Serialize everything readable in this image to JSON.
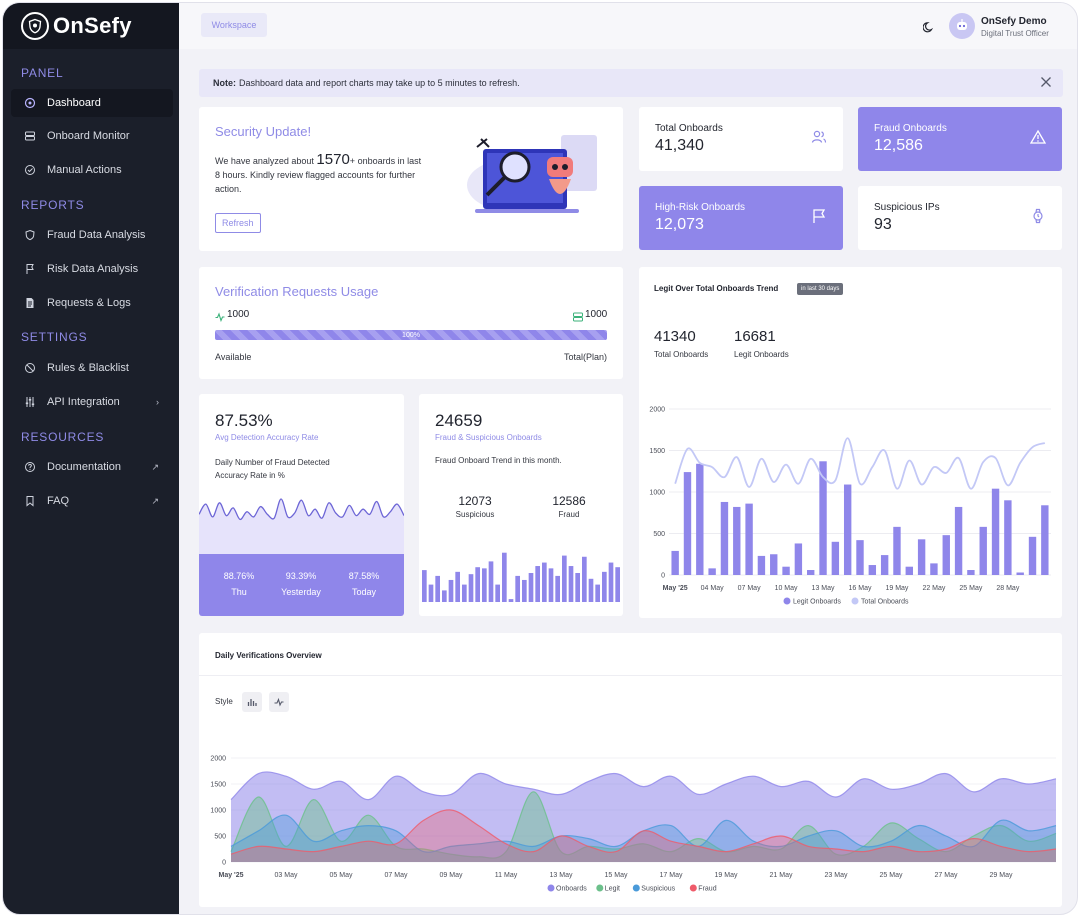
{
  "brand": {
    "name": "OnSefy"
  },
  "sidebar": {
    "sections": [
      {
        "label": "PANEL",
        "items": [
          {
            "label": "Dashboard",
            "icon": "dashboard-icon"
          },
          {
            "label": "Onboard Monitor",
            "icon": "server-icon"
          },
          {
            "label": "Manual Actions",
            "icon": "check-circle-icon"
          }
        ]
      },
      {
        "label": "REPORTS",
        "items": [
          {
            "label": "Fraud Data Analysis",
            "icon": "shield-icon"
          },
          {
            "label": "Risk Data Analysis",
            "icon": "flag-icon"
          },
          {
            "label": "Requests & Logs",
            "icon": "document-icon"
          }
        ]
      },
      {
        "label": "SETTINGS",
        "items": [
          {
            "label": "Rules & Blacklist",
            "icon": "ban-icon"
          },
          {
            "label": "API Integration",
            "icon": "sliders-icon"
          }
        ]
      },
      {
        "label": "RESOURCES",
        "items": [
          {
            "label": "Documentation",
            "icon": "help-icon"
          },
          {
            "label": "FAQ",
            "icon": "bookmark-icon"
          }
        ]
      }
    ]
  },
  "topbar": {
    "workspace": "Workspace",
    "user_name": "OnSefy Demo",
    "user_role": "Digital Trust Officer"
  },
  "note": {
    "bold": "Note:",
    "text": "Dashboard data and report charts may take up to 5 minutes to refresh."
  },
  "security": {
    "title": "Security Update!",
    "pre": "We have analyzed about",
    "count": "1570",
    "plus": "+",
    "post": "onboards in last",
    "line2": "8 hours. Kindly review flagged accounts for further",
    "line3": "action.",
    "button": "Refresh"
  },
  "stats": [
    {
      "label": "Total Onboards",
      "value": "41,340",
      "icon": "users-icon"
    },
    {
      "label": "Fraud Onboards",
      "value": "12,586",
      "icon": "warning-icon"
    },
    {
      "label": "High-Risk Onboards",
      "value": "12,073",
      "icon": "flag-icon"
    },
    {
      "label": "Suspicious IPs",
      "value": "93",
      "icon": "watch-icon"
    }
  ],
  "usage": {
    "title": "Verification Requests Usage",
    "available_value": "1000",
    "total_value": "1000",
    "progress": 100,
    "progress_label": "100%",
    "available_label": "Available",
    "total_label": "Total(Plan)"
  },
  "accuracy": {
    "value": "87.53%",
    "label": "Avg Detection Accuracy Rate",
    "desc1": "Daily Number of Fraud Detected",
    "desc2": "Accuracy Rate in %",
    "days": [
      {
        "value": "88.76%",
        "label": "Thu"
      },
      {
        "value": "93.39%",
        "label": "Yesterday"
      },
      {
        "value": "87.58%",
        "label": "Today"
      }
    ]
  },
  "fraud_suspicious": {
    "value": "24659",
    "label": "Fraud & Suspicious Onboards",
    "desc": "Fraud Onboard Trend in this month.",
    "items": [
      {
        "value": "12073",
        "label": "Suspicious"
      },
      {
        "value": "12586",
        "label": "Fraud"
      }
    ]
  },
  "trend": {
    "title": "Legit Over Total Onboards Trend",
    "badge": "in last 30 days",
    "kpis": [
      {
        "value": "41340",
        "label": "Total Onboards"
      },
      {
        "value": "16681",
        "label": "Legit Onboards"
      }
    ]
  },
  "daily": {
    "title": "Daily Verifications Overview",
    "style_label": "Style"
  },
  "colors": {
    "accent": "#8f86ea",
    "sidebar": "#1b1f2a",
    "onboards": "#8f86ea",
    "legit": "#6cc08b",
    "suspicious": "#4a9ad9",
    "fraud": "#ef5b6a"
  },
  "chart_data": [
    {
      "type": "bar",
      "title": "Legit Over Total Onboards Trend",
      "ylim": [
        0,
        2000
      ],
      "yticks": [
        0,
        500,
        1000,
        1500,
        2000
      ],
      "xticklabels": [
        "May '25",
        "04 May",
        "07 May",
        "10 May",
        "13 May",
        "16 May",
        "19 May",
        "22 May",
        "25 May",
        "28 May"
      ],
      "categories": [
        "01",
        "02",
        "03",
        "04",
        "05",
        "06",
        "07",
        "08",
        "09",
        "10",
        "11",
        "12",
        "13",
        "14",
        "15",
        "16",
        "17",
        "18",
        "19",
        "20",
        "21",
        "22",
        "23",
        "24",
        "25",
        "26",
        "27",
        "28",
        "29",
        "30",
        "31"
      ],
      "series": [
        {
          "name": "Legit Onboards",
          "kind": "bar",
          "values": [
            290,
            1240,
            1340,
            80,
            880,
            820,
            860,
            230,
            250,
            100,
            380,
            60,
            1370,
            400,
            1090,
            420,
            120,
            240,
            580,
            100,
            430,
            140,
            480,
            820,
            60,
            580,
            1040,
            900,
            30,
            460,
            840
          ]
        },
        {
          "name": "Total Onboards",
          "kind": "line",
          "values": [
            1100,
            1520,
            1350,
            1300,
            1180,
            1420,
            1060,
            1400,
            1120,
            1330,
            1100,
            1400,
            1180,
            1140,
            1650,
            1100,
            1300,
            1500,
            1040,
            1380,
            1090,
            1300,
            1230,
            1410,
            1040,
            1360,
            1410,
            1080,
            1350,
            1540,
            1590
          ]
        }
      ],
      "legend": "bottom"
    },
    {
      "type": "area",
      "title": "Daily Verifications Overview",
      "ylim": [
        0,
        2000
      ],
      "yticks": [
        0,
        500,
        1000,
        1500,
        2000
      ],
      "xticklabels": [
        "May '25",
        "03 May",
        "05 May",
        "07 May",
        "09 May",
        "11 May",
        "13 May",
        "15 May",
        "17 May",
        "19 May",
        "21 May",
        "23 May",
        "25 May",
        "27 May",
        "29 May"
      ],
      "categories": [
        "01",
        "02",
        "03",
        "04",
        "05",
        "06",
        "07",
        "08",
        "09",
        "10",
        "11",
        "12",
        "13",
        "14",
        "15",
        "16",
        "17",
        "18",
        "19",
        "20",
        "21",
        "22",
        "23",
        "24",
        "25",
        "26",
        "27",
        "28",
        "29",
        "30",
        "31"
      ],
      "series": [
        {
          "name": "Onboards",
          "values": [
            1200,
            1700,
            1650,
            1400,
            1550,
            1200,
            1650,
            1350,
            1300,
            1700,
            1500,
            1400,
            1300,
            1550,
            1700,
            1450,
            1650,
            1300,
            1500,
            1650,
            1450,
            1550,
            1250,
            1600,
            1400,
            1500,
            1700,
            1350,
            1600,
            1500,
            1600
          ]
        },
        {
          "name": "Legit",
          "values": [
            200,
            1250,
            300,
            1200,
            400,
            900,
            300,
            250,
            150,
            100,
            200,
            1350,
            200,
            300,
            250,
            350,
            200,
            450,
            200,
            300,
            250,
            700,
            150,
            300,
            750,
            450,
            200,
            500,
            700,
            400,
            550
          ]
        },
        {
          "name": "Suspicious",
          "values": [
            300,
            600,
            900,
            400,
            600,
            700,
            600,
            200,
            300,
            350,
            400,
            300,
            500,
            450,
            300,
            600,
            700,
            300,
            800,
            400,
            300,
            500,
            600,
            300,
            400,
            700,
            500,
            300,
            800,
            600,
            700
          ]
        },
        {
          "name": "Fraud",
          "values": [
            150,
            300,
            250,
            200,
            300,
            400,
            350,
            800,
            1000,
            700,
            350,
            200,
            500,
            300,
            200,
            600,
            400,
            300,
            200,
            350,
            500,
            300,
            250,
            200,
            300,
            200,
            250,
            450,
            300,
            200,
            250
          ]
        }
      ],
      "legend": "bottom"
    },
    {
      "type": "area",
      "title": "Avg Detection Accuracy Rate",
      "ylim": [
        0,
        100
      ],
      "values": [
        62,
        78,
        58,
        80,
        60,
        72,
        54,
        66,
        58,
        74,
        62,
        56,
        86,
        58,
        64,
        84,
        60,
        70,
        56,
        80,
        64,
        58,
        76,
        60,
        70,
        62,
        82,
        58,
        66,
        78,
        60
      ]
    },
    {
      "type": "bar",
      "title": "Fraud Onboard Trend in this month.",
      "ylim": [
        0,
        100
      ],
      "values": [
        55,
        30,
        45,
        20,
        38,
        52,
        30,
        48,
        60,
        58,
        70,
        30,
        85,
        5,
        45,
        38,
        50,
        62,
        68,
        58,
        45,
        80,
        62,
        50,
        78,
        40,
        30,
        52,
        68,
        60
      ]
    }
  ]
}
